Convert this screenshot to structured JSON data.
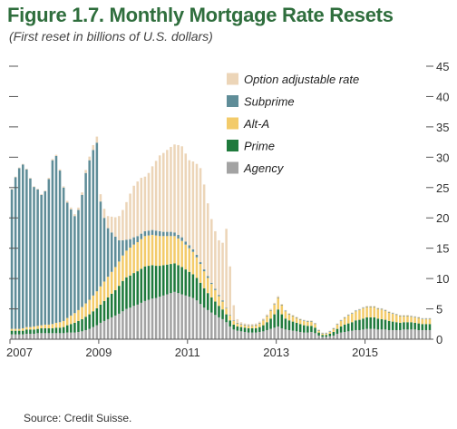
{
  "figure": {
    "title": "Figure 1.7. Monthly Mortgage Rate Resets",
    "subtitle": "(First reset in billions of U.S. dollars)",
    "source": "Source: Credit Suisse."
  },
  "chart_data": {
    "type": "bar",
    "stacked": true,
    "title": "Figure 1.7. Monthly Mortgage Rate Resets",
    "subtitle": "(First reset in billions of U.S. dollars)",
    "x_start": "2007-01",
    "x_end": "2016-06",
    "x_ticks": [
      "2007",
      "2009",
      "2011",
      "2013",
      "2015"
    ],
    "y_ticks": [
      0,
      5,
      10,
      15,
      20,
      25,
      30,
      35,
      40,
      45
    ],
    "ylim": [
      0,
      45
    ],
    "grid": false,
    "legend_position": "top-right",
    "series_order": [
      "Agency",
      "Prime",
      "Alt-A",
      "Subprime",
      "Option adjustable rate"
    ],
    "legend_order": [
      "Option adjustable rate",
      "Subprime",
      "Alt-A",
      "Prime",
      "Agency"
    ],
    "colors": {
      "Agency": "#a3a3a3",
      "Prime": "#1f7a3c",
      "Alt-A": "#f3cb6a",
      "Subprime": "#5f8d98",
      "Option adjustable rate": "#ecd5b8"
    },
    "values": {
      "Agency": [
        0.8,
        0.8,
        0.8,
        0.8,
        0.9,
        0.9,
        0.9,
        1.0,
        1.0,
        1.0,
        1.0,
        1.0,
        1.0,
        1.0,
        1.0,
        1.1,
        1.1,
        1.1,
        1.2,
        1.3,
        1.5,
        1.7,
        2.0,
        2.3,
        2.7,
        3.0,
        3.3,
        3.6,
        3.9,
        4.2,
        4.6,
        5.0,
        5.2,
        5.5,
        5.7,
        6.0,
        6.3,
        6.5,
        6.7,
        6.8,
        7.0,
        7.2,
        7.4,
        7.6,
        7.8,
        7.6,
        7.4,
        7.2,
        7.0,
        6.8,
        6.4,
        5.8,
        5.2,
        4.8,
        4.4,
        4.0,
        3.6,
        3.3,
        2.8,
        2.1,
        1.6,
        1.4,
        1.3,
        1.2,
        1.1,
        1.1,
        1.1,
        1.2,
        1.3,
        1.5,
        1.7,
        1.9,
        2.1,
        1.8,
        1.6,
        1.5,
        1.4,
        1.3,
        1.2,
        1.1,
        1.1,
        1.2,
        1.0,
        0.6,
        0.4,
        0.4,
        0.5,
        0.6,
        0.9,
        1.1,
        1.2,
        1.3,
        1.4,
        1.5,
        1.5,
        1.6,
        1.7,
        1.7,
        1.7,
        1.6,
        1.6,
        1.6,
        1.5,
        1.5,
        1.5,
        1.5,
        1.6,
        1.6,
        1.6,
        1.6,
        1.5,
        1.5,
        1.5,
        1.5
      ],
      "Prime": [
        0.6,
        0.6,
        0.6,
        0.6,
        0.7,
        0.7,
        0.7,
        0.7,
        0.8,
        0.8,
        0.8,
        0.8,
        0.9,
        0.9,
        1.0,
        1.2,
        1.4,
        1.6,
        1.8,
        2.0,
        2.2,
        2.4,
        2.6,
        2.8,
        3.0,
        3.3,
        3.6,
        3.9,
        4.2,
        4.6,
        5.0,
        5.2,
        5.3,
        5.4,
        5.5,
        5.6,
        5.7,
        5.6,
        5.5,
        5.3,
        5.1,
        5.0,
        4.9,
        4.8,
        4.7,
        4.6,
        4.5,
        4.3,
        4.1,
        3.9,
        3.7,
        3.5,
        3.2,
        2.8,
        2.5,
        2.2,
        1.9,
        1.6,
        1.3,
        1.0,
        0.8,
        0.7,
        0.7,
        0.7,
        0.7,
        0.7,
        0.7,
        0.8,
        1.0,
        1.3,
        1.7,
        2.2,
        2.8,
        2.3,
        1.8,
        1.6,
        1.5,
        1.4,
        1.3,
        1.2,
        1.1,
        1.0,
        0.9,
        0.5,
        0.3,
        0.3,
        0.4,
        0.6,
        0.8,
        1.0,
        1.2,
        1.3,
        1.4,
        1.6,
        1.7,
        1.8,
        1.9,
        1.9,
        1.9,
        1.8,
        1.7,
        1.6,
        1.5,
        1.4,
        1.3,
        1.2,
        1.2,
        1.2,
        1.2,
        1.1,
        1.1,
        1.0,
        1.0,
        1.0
      ],
      "Alt-A": [
        0.3,
        0.3,
        0.3,
        0.4,
        0.4,
        0.4,
        0.5,
        0.5,
        0.5,
        0.6,
        0.6,
        0.7,
        0.8,
        0.9,
        1.0,
        1.2,
        1.4,
        1.6,
        1.8,
        2.0,
        2.2,
        2.4,
        2.6,
        2.8,
        3.0,
        3.2,
        3.4,
        3.6,
        3.8,
        4.0,
        4.2,
        4.4,
        4.6,
        4.7,
        4.8,
        4.9,
        5.0,
        5.0,
        5.0,
        5.0,
        4.9,
        4.8,
        4.7,
        4.6,
        4.5,
        4.4,
        4.3,
        4.1,
        3.9,
        3.7,
        3.4,
        3.1,
        2.8,
        2.5,
        2.2,
        1.9,
        1.6,
        1.3,
        1.0,
        0.8,
        0.6,
        0.5,
        0.4,
        0.4,
        0.4,
        0.4,
        0.5,
        0.6,
        0.8,
        1.0,
        1.3,
        1.6,
        1.9,
        1.5,
        1.2,
        1.0,
        0.9,
        0.8,
        0.7,
        0.7,
        0.7,
        0.7,
        0.6,
        0.3,
        0.2,
        0.2,
        0.3,
        0.5,
        0.7,
        0.9,
        1.1,
        1.3,
        1.4,
        1.5,
        1.6,
        1.7,
        1.7,
        1.7,
        1.7,
        1.6,
        1.6,
        1.5,
        1.4,
        1.3,
        1.2,
        1.1,
        1.0,
        1.0,
        0.9,
        0.9,
        0.9,
        0.8,
        0.8,
        0.8
      ],
      "Subprime": [
        23.0,
        25.0,
        26.5,
        27.0,
        26.0,
        24.5,
        23.0,
        22.5,
        21.5,
        22.0,
        24.0,
        27.0,
        27.5,
        25.0,
        22.0,
        19.0,
        17.5,
        16.0,
        16.5,
        18.5,
        21.5,
        23.0,
        24.0,
        24.5,
        14.0,
        10.5,
        8.0,
        6.5,
        5.0,
        3.5,
        2.5,
        1.8,
        1.4,
        1.2,
        1.0,
        0.9,
        0.8,
        0.8,
        0.8,
        0.8,
        0.8,
        0.7,
        0.7,
        0.7,
        0.6,
        0.6,
        0.6,
        0.5,
        0.5,
        0.4,
        0.4,
        0.3,
        0.3,
        0.3,
        0.2,
        0.2,
        0.2,
        0.2,
        0.1,
        0.1,
        0.1,
        0.1,
        0.1,
        0.1,
        0.1,
        0.1,
        0.1,
        0.1,
        0.1,
        0.1,
        0.1,
        0.1,
        0.1,
        0.1,
        0.1,
        0.1,
        0.1,
        0.1,
        0.1,
        0.1,
        0.1,
        0.1,
        0.1,
        0.1,
        0.1,
        0.1,
        0.1,
        0.1,
        0.1,
        0.1,
        0.1,
        0.1,
        0.1,
        0.1,
        0.1,
        0.1,
        0.1,
        0.1,
        0.1,
        0.1,
        0.1,
        0.1,
        0.1,
        0.1,
        0.1,
        0.1,
        0.1,
        0.1,
        0.1,
        0.1,
        0.1,
        0.1,
        0.1,
        0.1
      ],
      "Option adjustable rate": [
        0.1,
        0.1,
        0.1,
        0.1,
        0.1,
        0.1,
        0.1,
        0.1,
        0.1,
        0.1,
        0.2,
        0.2,
        0.2,
        0.2,
        0.2,
        0.3,
        0.3,
        0.3,
        0.4,
        0.4,
        0.5,
        0.6,
        0.8,
        1.0,
        1.2,
        1.5,
        2.0,
        2.6,
        3.2,
        4.0,
        5.0,
        6.2,
        7.5,
        8.5,
        9.0,
        9.2,
        9.0,
        9.5,
        10.5,
        11.5,
        12.5,
        13.0,
        13.5,
        14.0,
        14.5,
        14.8,
        15.0,
        14.5,
        14.0,
        14.5,
        15.0,
        15.5,
        14.0,
        12.0,
        10.5,
        9.5,
        9.0,
        9.5,
        13.0,
        8.0,
        2.5,
        0.6,
        0.3,
        0.2,
        0.2,
        0.2,
        0.2,
        0.2,
        0.2,
        0.2,
        0.2,
        0.2,
        0.2,
        0.1,
        0.1,
        0.1,
        0.1,
        0.1,
        0.1,
        0.1,
        0.1,
        0.1,
        0.1,
        0.1,
        0.1,
        0.1,
        0.1,
        0.1,
        0.1,
        0.1,
        0.1,
        0.1,
        0.1,
        0.1,
        0.1,
        0.1,
        0.1,
        0.1,
        0.1,
        0.1,
        0.1,
        0.1,
        0.1,
        0.1,
        0.1,
        0.1,
        0.1,
        0.1,
        0.1,
        0.1,
        0.1,
        0.1,
        0.1,
        0.1
      ]
    }
  }
}
